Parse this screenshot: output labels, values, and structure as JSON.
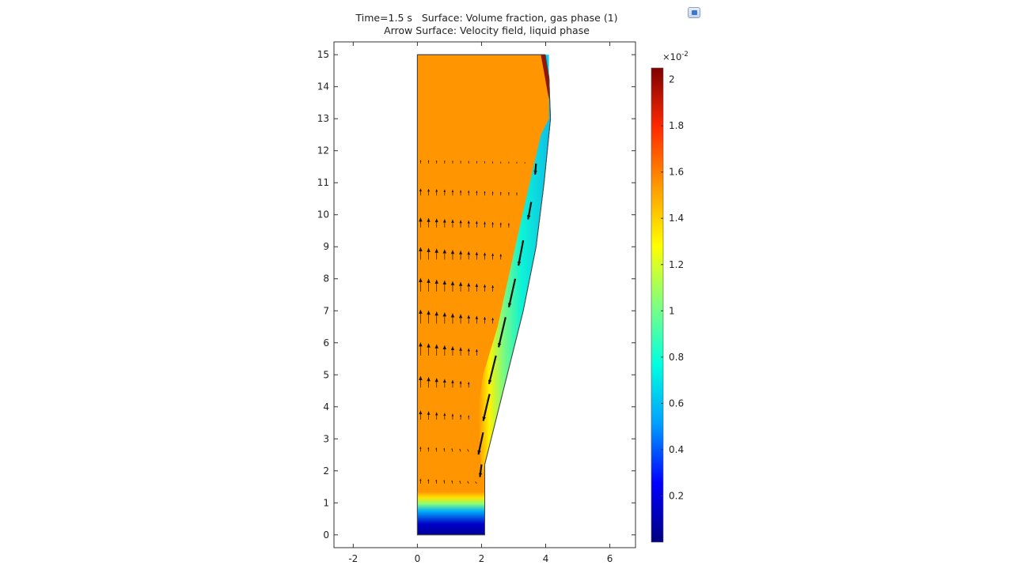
{
  "title": {
    "line1": "Time=1.5 s   Surface: Volume fraction, gas phase (1)",
    "line2": "Arrow Surface: Velocity field, liquid phase"
  },
  "chart_data": {
    "type": "heatmap",
    "description_surface": "Volume fraction, gas phase (1)",
    "description_arrows": "Velocity field, liquid phase",
    "xlim": [
      -2.6,
      6.8
    ],
    "ylim": [
      -0.4,
      15.4
    ],
    "x_ticks": [
      -2,
      0,
      2,
      4,
      6
    ],
    "y_ticks": [
      0,
      1,
      2,
      3,
      4,
      5,
      6,
      7,
      8,
      9,
      10,
      11,
      12,
      13,
      14,
      15
    ],
    "x_tick_labels": [
      "-2",
      "0",
      "2",
      "4",
      "6"
    ],
    "y_tick_labels": [
      "0",
      "1",
      "2",
      "3",
      "4",
      "5",
      "6",
      "7",
      "8",
      "9",
      "10",
      "11",
      "12",
      "13",
      "14",
      "15"
    ],
    "domain_outline": [
      [
        0,
        0
      ],
      [
        2.1,
        0
      ],
      [
        2.1,
        2.2
      ],
      [
        2.3,
        3
      ],
      [
        2.8,
        5
      ],
      [
        3.3,
        7
      ],
      [
        3.7,
        9
      ],
      [
        3.95,
        11
      ],
      [
        4.15,
        13
      ],
      [
        4.1,
        14.3
      ],
      [
        3.98,
        15
      ],
      [
        0,
        15
      ]
    ],
    "interface_profile": [
      [
        2.0,
        1.8
      ],
      [
        1.9,
        4
      ],
      [
        2.05,
        5
      ],
      [
        2.5,
        6.5
      ],
      [
        3.05,
        9
      ],
      [
        3.5,
        11
      ],
      [
        3.85,
        12.5
      ],
      [
        4.1,
        13
      ],
      [
        4.1,
        15
      ]
    ],
    "surface_values": {
      "bulk_gas_region": 1.55,
      "liquid_film": 0.75,
      "bottom_pool_min": 0.05,
      "top_right_corner_max": 2.05
    },
    "arrow_columns_x": [
      0.1,
      0.35,
      0.6,
      0.85,
      1.1,
      1.35,
      1.6,
      1.85,
      2.1,
      2.35,
      2.6,
      2.85,
      3.1,
      3.35
    ],
    "arrow_rows_y": [
      1.6,
      2.6,
      3.6,
      4.6,
      5.6,
      6.6,
      7.6,
      8.6,
      9.6,
      10.6,
      11.6
    ],
    "film_arrows": [
      {
        "x": 3.7,
        "y": 11.6,
        "u": -0.03,
        "v": -0.35
      },
      {
        "x": 3.55,
        "y": 10.4,
        "u": -0.1,
        "v": -0.55
      },
      {
        "x": 3.3,
        "y": 9.2,
        "u": -0.15,
        "v": -0.8
      },
      {
        "x": 3.05,
        "y": 8.0,
        "u": -0.2,
        "v": -0.9
      },
      {
        "x": 2.75,
        "y": 6.8,
        "u": -0.22,
        "v": -0.95
      },
      {
        "x": 2.45,
        "y": 5.6,
        "u": -0.22,
        "v": -0.9
      },
      {
        "x": 2.25,
        "y": 4.4,
        "u": -0.2,
        "v": -0.85
      },
      {
        "x": 2.05,
        "y": 3.2,
        "u": -0.15,
        "v": -0.7
      },
      {
        "x": 2.0,
        "y": 2.2,
        "u": -0.05,
        "v": -0.4
      }
    ],
    "colorbar": {
      "min": 0.0,
      "max": 2.05,
      "exponent_label": "×10",
      "exponent_power": "-2",
      "tick_values": [
        0.2,
        0.4,
        0.6,
        0.8,
        1,
        1.2,
        1.4,
        1.6,
        1.8,
        2
      ],
      "tick_labels": [
        "0.2",
        "0.4",
        "0.6",
        "0.8",
        "1",
        "1.2",
        "1.4",
        "1.6",
        "1.8",
        "2"
      ],
      "colormap": "rainbow",
      "colormap_stops": [
        "#00007f",
        "#0000ff",
        "#00a0ff",
        "#00ffe0",
        "#7fff7f",
        "#ffff00",
        "#ff9a00",
        "#ff2a00",
        "#7f0000"
      ]
    }
  }
}
